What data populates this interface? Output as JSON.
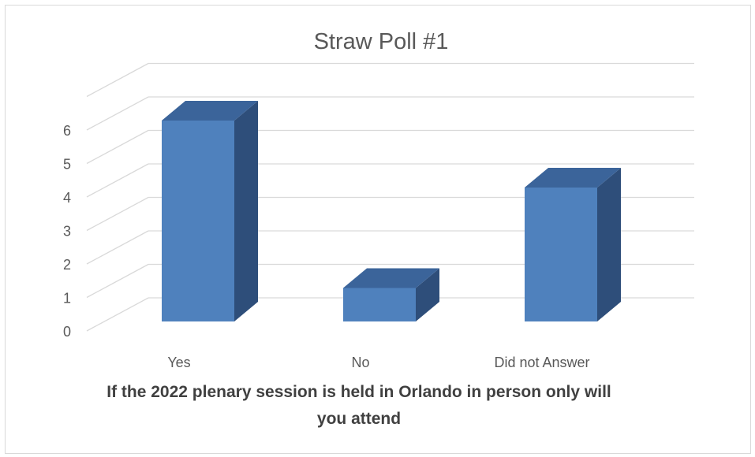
{
  "chart_data": {
    "type": "bar",
    "style": "3d-column",
    "title": "Straw Poll #1",
    "categories": [
      "Yes",
      "No",
      "Did not Answer"
    ],
    "values": [
      6,
      1,
      4
    ],
    "xlabel_lines": [
      "If the 2022 plenary session is held in Orlando in person only will",
      "you attend"
    ],
    "ylabel": "",
    "ylim": [
      0,
      7
    ],
    "yticks": [
      "0",
      "1",
      "2",
      "3",
      "4",
      "5",
      "6"
    ],
    "grid": true,
    "legend": "none",
    "colors": {
      "front": "#4f81bd",
      "side": "#2e4e7a",
      "top": "#3b649a",
      "grid": "#d9d9d9"
    }
  }
}
